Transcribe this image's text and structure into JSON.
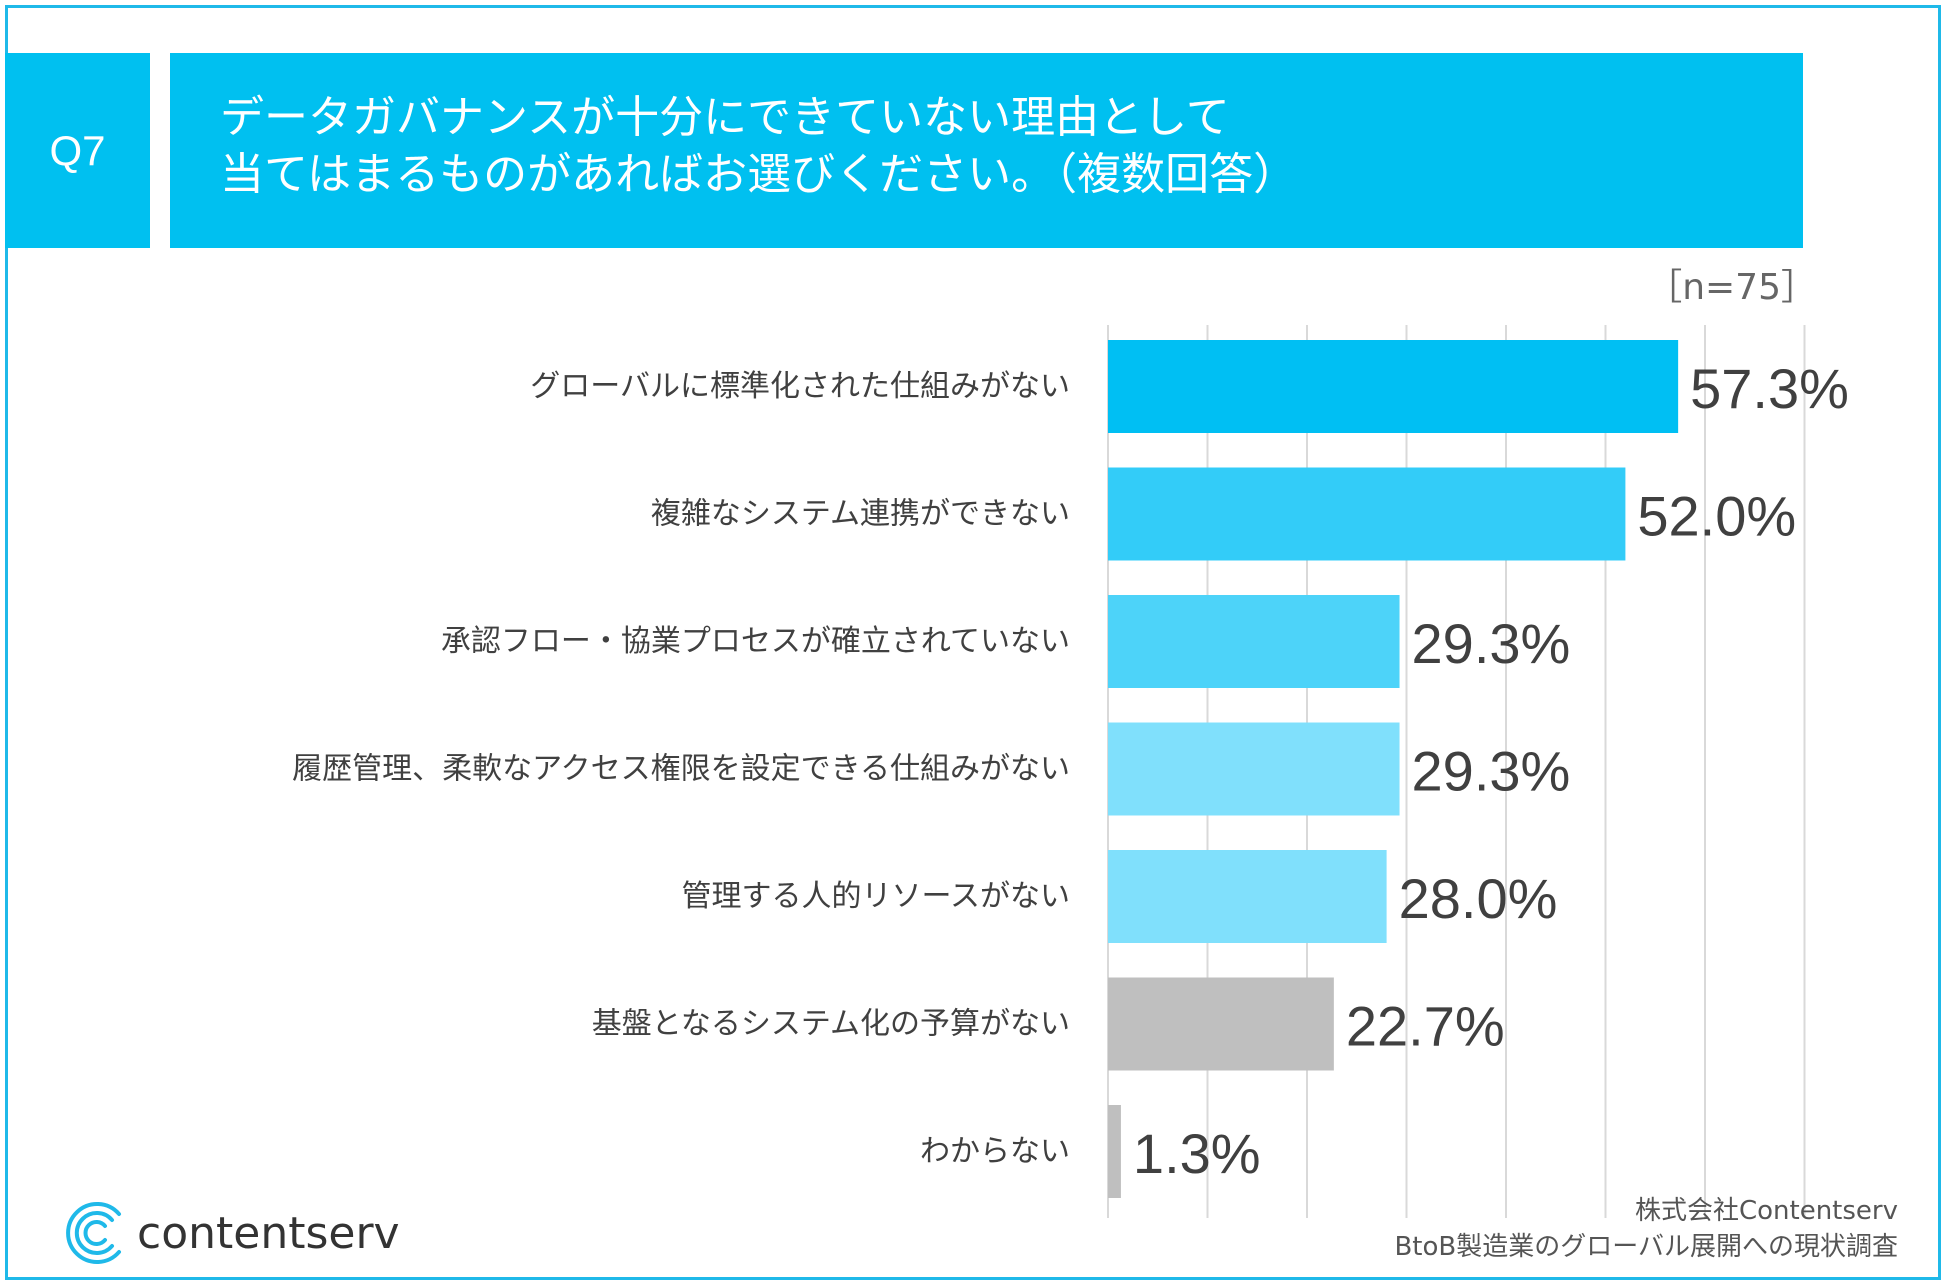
{
  "header": {
    "question_number": "Q7",
    "question_line1": "データガバナンスが十分にできていない理由として",
    "question_line2": "当てはまるものがあればお選びください。（複数回答）"
  },
  "sample_size": "［n=75］",
  "chart_data": {
    "type": "bar",
    "orientation": "horizontal",
    "categories": [
      "グローバルに標準化された仕組みがない",
      "複雑なシステム連携ができない",
      "承認フロー・協業プロセスが確立されていない",
      "履歴管理、柔軟なアクセス権限を設定できる仕組みがない",
      "管理する人的リソースがない",
      "基盤となるシステム化の予算がない",
      "わからない"
    ],
    "values": [
      57.3,
      52.0,
      29.3,
      29.3,
      28.0,
      22.7,
      1.3
    ],
    "value_labels": [
      "57.3%",
      "52.0%",
      "29.3%",
      "29.3%",
      "28.0%",
      "22.7%",
      "1.3%"
    ],
    "bar_colors": [
      "#00bff3",
      "#33ccf8",
      "#4dd3f9",
      "#80e0fc",
      "#80e0fc",
      "#bfbfbf",
      "#bfbfbf"
    ],
    "xlim": [
      0,
      70
    ],
    "grid": true
  },
  "logo": {
    "text": "contentserv",
    "color": "#1fb9e9"
  },
  "source": {
    "line1": "株式会社Contentserv",
    "line2": "BtoB製造業のグローバル展開への現状調査"
  }
}
